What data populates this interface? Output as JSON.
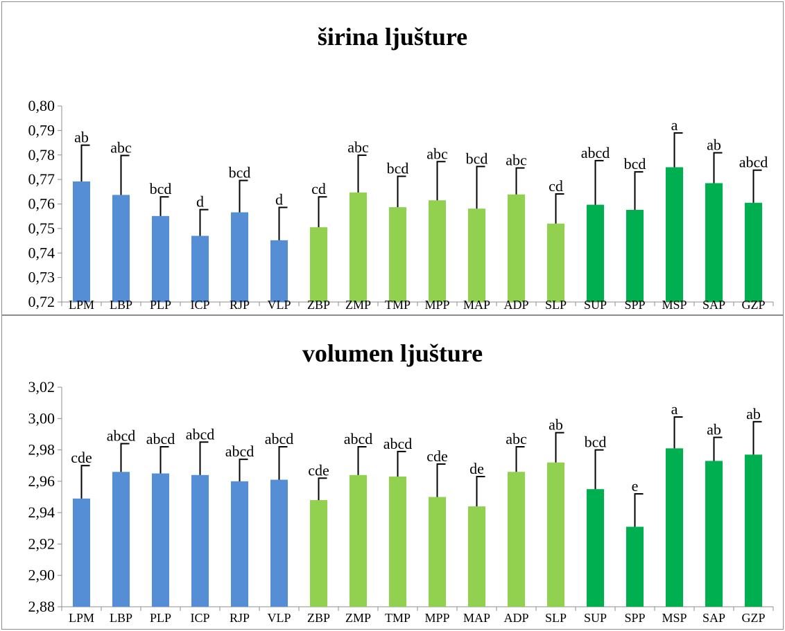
{
  "chart_data": [
    {
      "type": "bar",
      "title": "širina ljušture",
      "categories": [
        "LPM",
        "LBP",
        "PLP",
        "ICP",
        "RJP",
        "VLP",
        "ZBP",
        "ZMP",
        "TMP",
        "MPP",
        "MAP",
        "ADP",
        "SLP",
        "SUP",
        "SPP",
        "MSP",
        "SAP",
        "GZP"
      ],
      "values": [
        0.7692,
        0.7637,
        0.7551,
        0.747,
        0.7566,
        0.7452,
        0.7505,
        0.7647,
        0.7587,
        0.7615,
        0.7581,
        0.7639,
        0.752,
        0.7597,
        0.7576,
        0.775,
        0.7685,
        0.7605
      ],
      "error_plus": [
        0.0148,
        0.0161,
        0.0078,
        0.0107,
        0.013,
        0.0134,
        0.0124,
        0.0152,
        0.0126,
        0.0158,
        0.0172,
        0.0108,
        0.0121,
        0.018,
        0.0155,
        0.014,
        0.0124,
        0.0133
      ],
      "significance": [
        "ab",
        "abc",
        "bcd",
        "d",
        "bcd",
        "d",
        "cd",
        "abc",
        "bcd",
        "abc",
        "bcd",
        "abc",
        "cd",
        "abcd",
        "bcd",
        "a",
        "ab",
        "abcd"
      ],
      "bar_colors": [
        "#558ed5",
        "#558ed5",
        "#558ed5",
        "#558ed5",
        "#558ed5",
        "#558ed5",
        "#92d050",
        "#92d050",
        "#92d050",
        "#92d050",
        "#92d050",
        "#92d050",
        "#92d050",
        "#00b050",
        "#00b050",
        "#00b050",
        "#00b050",
        "#00b050"
      ],
      "ylim": [
        0.72,
        0.8
      ],
      "ystep": 0.01,
      "ytick_labels": [
        "0,72",
        "0,73",
        "0,74",
        "0,75",
        "0,76",
        "0,77",
        "0,78",
        "0,79",
        "0,80"
      ],
      "grid": false,
      "legend": "none"
    },
    {
      "type": "bar",
      "title": "volumen ljušture",
      "categories": [
        "LPM",
        "LBP",
        "PLP",
        "ICP",
        "RJP",
        "VLP",
        "ZBP",
        "ZMP",
        "TMP",
        "MPP",
        "MAP",
        "ADP",
        "SLP",
        "SUP",
        "SPP",
        "MSP",
        "SAP",
        "GZP"
      ],
      "values": [
        2.949,
        2.966,
        2.965,
        2.964,
        2.96,
        2.961,
        2.948,
        2.964,
        2.963,
        2.95,
        2.944,
        2.966,
        2.972,
        2.955,
        2.931,
        2.981,
        2.973,
        2.977
      ],
      "error_plus": [
        0.021,
        0.018,
        0.017,
        0.021,
        0.014,
        0.021,
        0.014,
        0.018,
        0.016,
        0.021,
        0.019,
        0.016,
        0.019,
        0.025,
        0.021,
        0.02,
        0.015,
        0.021
      ],
      "significance": [
        "cde",
        "abcd",
        "abcd",
        "abcd",
        "abcd",
        "abcd",
        "cde",
        "abcd",
        "abcd",
        "cde",
        "de",
        "abc",
        "ab",
        "bcd",
        "e",
        "a",
        "ab",
        "ab"
      ],
      "bar_colors": [
        "#558ed5",
        "#558ed5",
        "#558ed5",
        "#558ed5",
        "#558ed5",
        "#558ed5",
        "#92d050",
        "#92d050",
        "#92d050",
        "#92d050",
        "#92d050",
        "#92d050",
        "#92d050",
        "#00b050",
        "#00b050",
        "#00b050",
        "#00b050",
        "#00b050"
      ],
      "ylim": [
        2.88,
        3.02
      ],
      "ystep": 0.02,
      "ytick_labels": [
        "2,88",
        "2,90",
        "2,92",
        "2,94",
        "2,96",
        "2,98",
        "3,00",
        "3,02"
      ],
      "grid": false,
      "legend": "none"
    }
  ]
}
